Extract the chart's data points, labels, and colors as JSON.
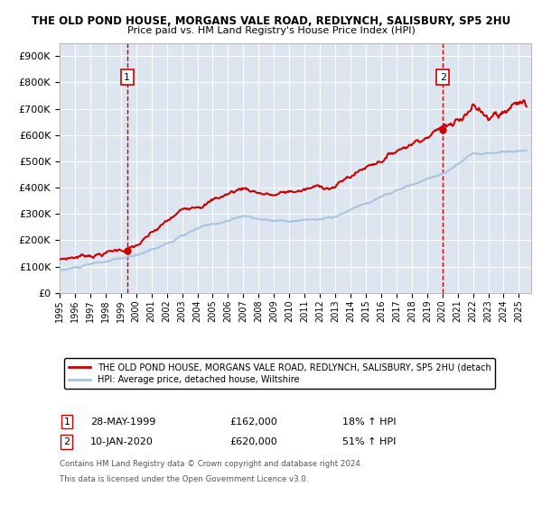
{
  "title1": "THE OLD POND HOUSE, MORGANS VALE ROAD, REDLYNCH, SALISBURY, SP5 2HU",
  "title2": "Price paid vs. HM Land Registry's House Price Index (HPI)",
  "background_color": "#e8eef7",
  "plot_bg_color": "#dde6f0",
  "sale1_date": 1999.41,
  "sale1_price": 162000,
  "sale2_date": 2020.03,
  "sale2_price": 620000,
  "ylim_max": 950000,
  "legend_line1": "THE OLD POND HOUSE, MORGANS VALE ROAD, REDLYNCH, SALISBURY, SP5 2HU (detach",
  "legend_line2": "HPI: Average price, detached house, Wiltshire",
  "footer1": "Contains HM Land Registry data © Crown copyright and database right 2024.",
  "footer2": "This data is licensed under the Open Government Licence v3.0.",
  "hpi_color": "#aac4e0",
  "price_color": "#cc0000",
  "dashed_color": "#cc0000"
}
